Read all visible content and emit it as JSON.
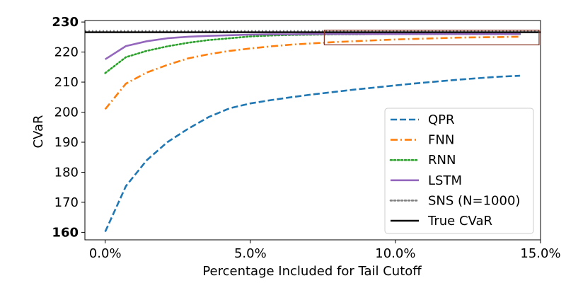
{
  "chart_data": {
    "type": "line",
    "title": "",
    "xlabel": "Percentage Included for Tail Cutoff",
    "ylabel": "CVaR",
    "xlim": [
      -0.7,
      15.0
    ],
    "ylim": [
      157.5,
      230.5
    ],
    "xticks": [
      0,
      5,
      10,
      15
    ],
    "xtick_labels": [
      "0.0%",
      "5.0%",
      "10.0%",
      "15.0%"
    ],
    "yticks": [
      160,
      170,
      180,
      190,
      200,
      210,
      220,
      230
    ],
    "ytick_labels": [
      "160",
      "170",
      "180",
      "190",
      "200",
      "210",
      "220",
      "230"
    ],
    "bold_yticks": [
      "160",
      "230"
    ],
    "grid": false,
    "legend_position": "lower right",
    "x": [
      0.0,
      0.714,
      1.43,
      2.14,
      2.86,
      3.57,
      4.29,
      5.0,
      5.71,
      6.43,
      7.14,
      7.86,
      8.57,
      9.29,
      10.0,
      10.71,
      11.43,
      12.14,
      12.86,
      13.57,
      14.29
    ],
    "series": [
      {
        "name": "QPR",
        "color": "#1f77b4",
        "style": "dashed",
        "values": [
          160.2,
          175.4,
          184.0,
          190.0,
          194.5,
          198.4,
          201.3,
          202.9,
          204.0,
          205.0,
          205.9,
          206.7,
          207.5,
          208.2,
          208.9,
          209.6,
          210.2,
          210.8,
          211.3,
          211.8,
          212.1
        ]
      },
      {
        "name": "FNN",
        "color": "#ff7f0e",
        "style": "dashdot",
        "values": [
          201.0,
          209.5,
          213.2,
          215.7,
          217.9,
          219.3,
          220.4,
          221.2,
          221.9,
          222.5,
          222.9,
          223.3,
          223.6,
          223.9,
          224.2,
          224.4,
          224.6,
          224.8,
          224.9,
          225.0,
          225.1
        ]
      },
      {
        "name": "RNN",
        "color": "#2ca02c",
        "style": "dotted",
        "values": [
          213.0,
          218.3,
          220.4,
          221.9,
          223.1,
          224.0,
          224.6,
          225.2,
          225.5,
          225.7,
          225.8,
          225.9,
          225.9,
          226.0,
          226.0,
          226.0,
          226.0,
          226.0,
          226.0,
          226.0,
          226.0
        ]
      },
      {
        "name": "LSTM",
        "color": "#9467bd",
        "style": "solid",
        "values": [
          217.6,
          222.0,
          223.6,
          224.6,
          225.1,
          225.4,
          225.6,
          225.8,
          225.9,
          225.9,
          226.0,
          226.0,
          226.0,
          226.0,
          226.0,
          226.0,
          226.0,
          226.0,
          226.0,
          226.0,
          226.0
        ]
      }
    ],
    "reference_lines": [
      {
        "name": "SNS (N=1000)",
        "color": "#808080",
        "style": "dotted",
        "y": 227.0
      },
      {
        "name": "True CVaR",
        "color": "#000000",
        "style": "solid",
        "y": 226.6
      }
    ],
    "highlight_box": {
      "x": [
        7.55,
        14.95
      ],
      "y": [
        222.4,
        227.3
      ],
      "color": "#8b3a2a"
    },
    "legend": [
      "QPR",
      "FNN",
      "RNN",
      "LSTM",
      "SNS (N=1000)",
      "True CVaR"
    ]
  }
}
